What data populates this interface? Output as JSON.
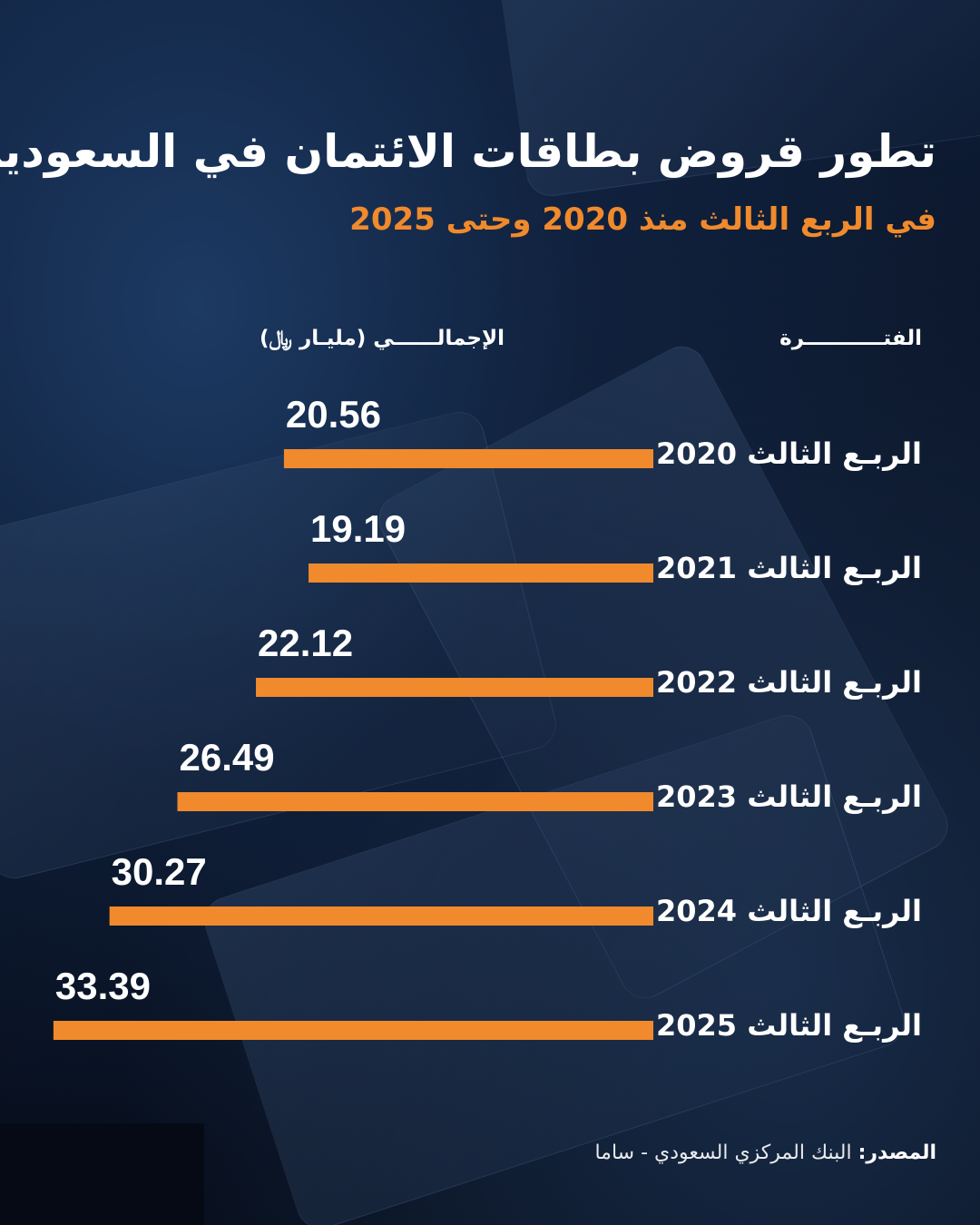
{
  "title": "تطور قروض بطاقات الائتمان في السعودية",
  "subtitle": "في الربع الثالث منذ 2020 وحتى 2025",
  "headers": {
    "period": "الفتـــــــــــرة",
    "total": "الإجمالــــــي (مليـار ﷼)"
  },
  "source": {
    "label": "المصدر:",
    "text": "البنك المركزي السعودي - ساما"
  },
  "colors": {
    "bar": "#f08a2c",
    "text": "#ffffff",
    "subtitle": "#f08a2c"
  },
  "chart_data": {
    "type": "bar",
    "orientation": "horizontal",
    "categories": [
      "الربـع الثالث 2020",
      "الربـع الثالث 2021",
      "الربـع الثالث 2022",
      "الربـع الثالث 2023",
      "الربـع الثالث 2024",
      "الربـع الثالث 2025"
    ],
    "values": [
      20.56,
      19.19,
      22.12,
      26.49,
      30.27,
      33.39
    ],
    "value_labels": [
      "20.56",
      "19.19",
      "22.12",
      "26.49",
      "30.27",
      "33.39"
    ],
    "title": "تطور قروض بطاقات الائتمان في السعودية",
    "xlabel": "الإجمالــــــي (مليـار ﷼)",
    "ylabel": "الفتـــــــــــرة",
    "bar_direction": "right-to-left",
    "grid": false,
    "legend": "none"
  }
}
